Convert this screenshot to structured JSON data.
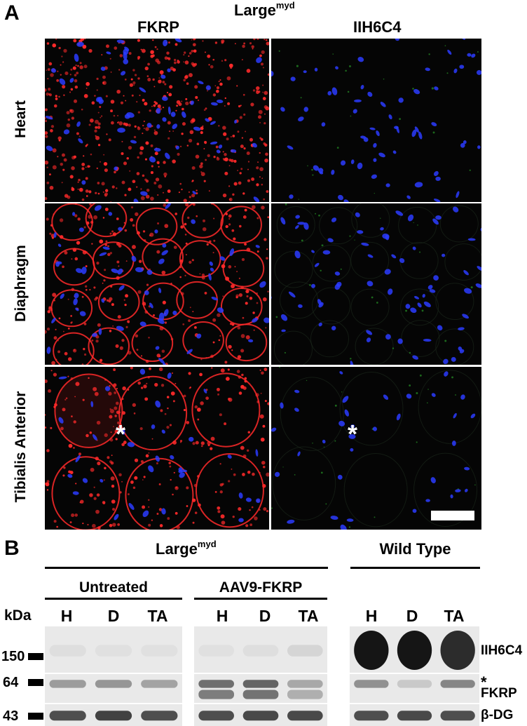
{
  "panel_a": {
    "letter": "A",
    "title_main": "Large",
    "title_sup": "myd",
    "columns": [
      "FKRP",
      "IIH6C4"
    ],
    "rows": [
      "Heart",
      "Diaphragm",
      "Tibialis Anterior"
    ],
    "asterisk": "*",
    "colors": {
      "nuclei": "#2b3cff",
      "fkrp": "#ff2a2a",
      "iih6c4": "#33cc33",
      "background": "#050505"
    }
  },
  "panel_b": {
    "letter": "B",
    "title_main": "Large",
    "title_sup": "myd",
    "wild_type": "Wild Type",
    "groups": [
      "Untreated",
      "AAV9-FKRP"
    ],
    "kda_label": "kDa",
    "lanes": [
      "H",
      "D",
      "TA"
    ],
    "markers": [
      "150",
      "64",
      "43"
    ],
    "antibodies": [
      "IIH6C4",
      "FKRP",
      "β-DG"
    ],
    "band_asterisk": "*"
  }
}
